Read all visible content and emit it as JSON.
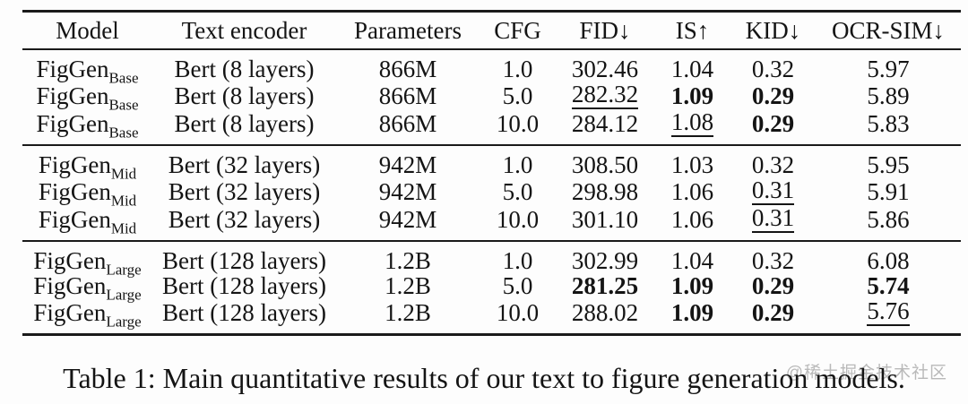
{
  "page": {
    "background": "#fdfdfd",
    "text_color": "#141414",
    "rule_color": "#1a1a1a"
  },
  "table": {
    "columns": [
      {
        "key": "model",
        "label": "Model"
      },
      {
        "key": "encoder",
        "label": "Text encoder"
      },
      {
        "key": "params",
        "label": "Parameters"
      },
      {
        "key": "cfg",
        "label": "CFG"
      },
      {
        "key": "fid",
        "label": "FID↓"
      },
      {
        "key": "is",
        "label": "IS↑"
      },
      {
        "key": "kid",
        "label": "KID↓"
      },
      {
        "key": "ocr",
        "label": "OCR-SIM↓"
      }
    ],
    "groups": [
      {
        "name": "base",
        "rows": [
          {
            "model": {
              "name": "FigGen",
              "sub": "Base"
            },
            "encoder": "Bert (8 layers)",
            "params": "866M",
            "cfg": "1.0",
            "fid": {
              "v": "302.46",
              "s": ""
            },
            "is": {
              "v": "1.04",
              "s": ""
            },
            "kid": {
              "v": "0.32",
              "s": ""
            },
            "ocr": {
              "v": "5.97",
              "s": ""
            }
          },
          {
            "model": {
              "name": "FigGen",
              "sub": "Base"
            },
            "encoder": "Bert (8 layers)",
            "params": "866M",
            "cfg": "5.0",
            "fid": {
              "v": "282.32",
              "s": "u"
            },
            "is": {
              "v": "1.09",
              "s": "b"
            },
            "kid": {
              "v": "0.29",
              "s": "b"
            },
            "ocr": {
              "v": "5.89",
              "s": ""
            }
          },
          {
            "model": {
              "name": "FigGen",
              "sub": "Base"
            },
            "encoder": "Bert (8 layers)",
            "params": "866M",
            "cfg": "10.0",
            "fid": {
              "v": "284.12",
              "s": ""
            },
            "is": {
              "v": "1.08",
              "s": "u"
            },
            "kid": {
              "v": "0.29",
              "s": "b"
            },
            "ocr": {
              "v": "5.83",
              "s": ""
            }
          }
        ]
      },
      {
        "name": "mid",
        "rows": [
          {
            "model": {
              "name": "FigGen",
              "sub": "Mid"
            },
            "encoder": "Bert (32 layers)",
            "params": "942M",
            "cfg": "1.0",
            "fid": {
              "v": "308.50",
              "s": ""
            },
            "is": {
              "v": "1.03",
              "s": ""
            },
            "kid": {
              "v": "0.32",
              "s": ""
            },
            "ocr": {
              "v": "5.95",
              "s": ""
            }
          },
          {
            "model": {
              "name": "FigGen",
              "sub": "Mid"
            },
            "encoder": "Bert (32 layers)",
            "params": "942M",
            "cfg": "5.0",
            "fid": {
              "v": "298.98",
              "s": ""
            },
            "is": {
              "v": "1.06",
              "s": ""
            },
            "kid": {
              "v": "0.31",
              "s": "u"
            },
            "ocr": {
              "v": "5.91",
              "s": ""
            }
          },
          {
            "model": {
              "name": "FigGen",
              "sub": "Mid"
            },
            "encoder": "Bert (32 layers)",
            "params": "942M",
            "cfg": "10.0",
            "fid": {
              "v": "301.10",
              "s": ""
            },
            "is": {
              "v": "1.06",
              "s": ""
            },
            "kid": {
              "v": "0.31",
              "s": "u"
            },
            "ocr": {
              "v": "5.86",
              "s": ""
            }
          }
        ]
      },
      {
        "name": "large",
        "rows": [
          {
            "model": {
              "name": "FigGen",
              "sub": "Large"
            },
            "encoder": "Bert (128 layers)",
            "params": "1.2B",
            "cfg": "1.0",
            "fid": {
              "v": "302.99",
              "s": ""
            },
            "is": {
              "v": "1.04",
              "s": ""
            },
            "kid": {
              "v": "0.32",
              "s": ""
            },
            "ocr": {
              "v": "6.08",
              "s": ""
            }
          },
          {
            "model": {
              "name": "FigGen",
              "sub": "Large"
            },
            "encoder": "Bert (128 layers)",
            "params": "1.2B",
            "cfg": "5.0",
            "fid": {
              "v": "281.25",
              "s": "b"
            },
            "is": {
              "v": "1.09",
              "s": "b"
            },
            "kid": {
              "v": "0.29",
              "s": "b"
            },
            "ocr": {
              "v": "5.74",
              "s": "b"
            }
          },
          {
            "model": {
              "name": "FigGen",
              "sub": "Large"
            },
            "encoder": "Bert (128 layers)",
            "params": "1.2B",
            "cfg": "10.0",
            "fid": {
              "v": "288.02",
              "s": ""
            },
            "is": {
              "v": "1.09",
              "s": "b"
            },
            "kid": {
              "v": "0.29",
              "s": "b"
            },
            "ocr": {
              "v": "5.76",
              "s": "u"
            }
          }
        ]
      }
    ]
  },
  "caption": {
    "text": "Table 1: Main quantitative results of our text to figure generation models."
  },
  "watermark": {
    "text": "@稀土掘金技术社区",
    "color": "#b9b9b9"
  }
}
